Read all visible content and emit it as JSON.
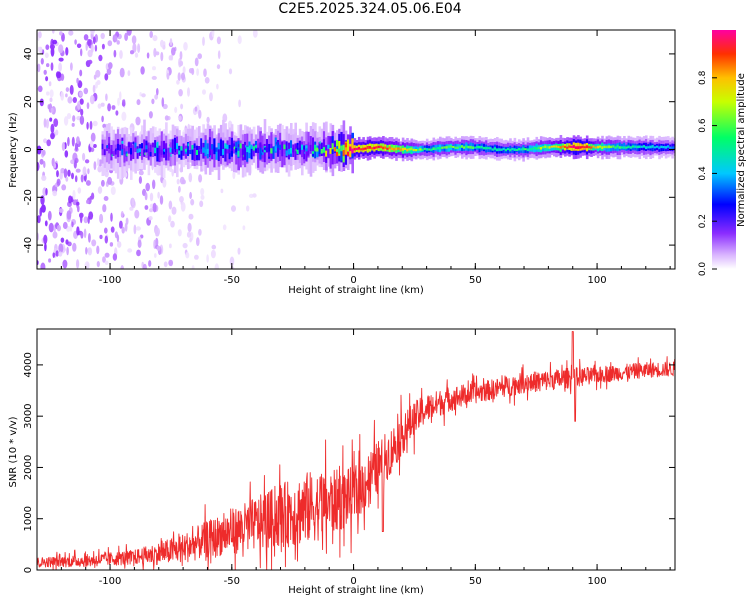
{
  "title": "C2E5.2025.324.05.06.E04",
  "chart_data": [
    {
      "type": "heatmap",
      "xlabel": "Height of straight line (km)",
      "ylabel": "Frequency (Hz)",
      "xlim": [
        -130,
        132
      ],
      "ylim": [
        -50,
        50
      ],
      "x_ticks": [
        -100,
        -50,
        0,
        50,
        100
      ],
      "y_ticks": [
        -40,
        -20,
        0,
        20,
        40
      ],
      "colorbar": {
        "label": "Normalized spectral amplitude",
        "range": [
          0,
          1
        ],
        "ticks": [
          "0.0",
          "0.2",
          "0.4",
          "0.6",
          "0.8"
        ],
        "colors": [
          "#ffffff",
          "#d9b3ff",
          "#9a3cff",
          "#6a00ff",
          "#0000ff",
          "#00c8ff",
          "#00ff80",
          "#c8ff00",
          "#ffd000",
          "#ff5a00",
          "#ff0040",
          "#ff00a0"
        ]
      },
      "band_profile": {
        "x": [
          -100,
          -90,
          -80,
          -70,
          -60,
          -50,
          -40,
          -30,
          -20,
          -10,
          0,
          10,
          20,
          30,
          40,
          50,
          60,
          70,
          80,
          90,
          95,
          100,
          110,
          120,
          132
        ],
        "center_hz": [
          0,
          0,
          0,
          0,
          0,
          0,
          0,
          0,
          0,
          0,
          0,
          1,
          0,
          0,
          1,
          1,
          0,
          0,
          1,
          1,
          1,
          1,
          1,
          1,
          1
        ],
        "peak_amplitude": [
          0.3,
          0.35,
          0.38,
          0.4,
          0.45,
          0.45,
          0.45,
          0.45,
          0.4,
          0.55,
          0.95,
          0.9,
          0.75,
          0.55,
          0.6,
          0.55,
          0.5,
          0.55,
          0.65,
          0.95,
          0.95,
          0.7,
          0.55,
          0.5,
          0.45
        ]
      },
      "noise_region_km": [
        -130,
        -70
      ]
    },
    {
      "type": "line",
      "xlabel": "Height of straight line (km)",
      "ylabel": "SNR (10 * v/v)",
      "xlim": [
        -130,
        132
      ],
      "ylim": [
        0,
        4700
      ],
      "x_ticks": [
        -100,
        -50,
        0,
        50,
        100
      ],
      "y_ticks": [
        0,
        1000,
        2000,
        3000,
        4000
      ],
      "color": "#ee2b2b",
      "trend": {
        "x": [
          -130,
          -110,
          -90,
          -80,
          -70,
          -60,
          -50,
          -40,
          -30,
          -20,
          -10,
          0,
          10,
          15,
          20,
          25,
          30,
          40,
          50,
          60,
          70,
          80,
          90,
          100,
          110,
          120,
          132
        ],
        "y": [
          150,
          180,
          250,
          320,
          420,
          600,
          750,
          900,
          1050,
          1200,
          1300,
          1450,
          2000,
          2300,
          2650,
          2950,
          3150,
          3350,
          3450,
          3550,
          3650,
          3700,
          3750,
          3800,
          3850,
          3900,
          3920
        ]
      },
      "spread": {
        "x": [
          -130,
          -90,
          -60,
          -40,
          -20,
          -10,
          0,
          10,
          20,
          30,
          50,
          90,
          100,
          132
        ],
        "y": [
          120,
          180,
          450,
          650,
          900,
          800,
          700,
          650,
          500,
          350,
          250,
          250,
          200,
          180
        ]
      },
      "spikes": [
        {
          "x": 12,
          "y": 750
        },
        {
          "x": 90,
          "y": 4650
        },
        {
          "x": 91,
          "y": 2900
        }
      ]
    }
  ]
}
